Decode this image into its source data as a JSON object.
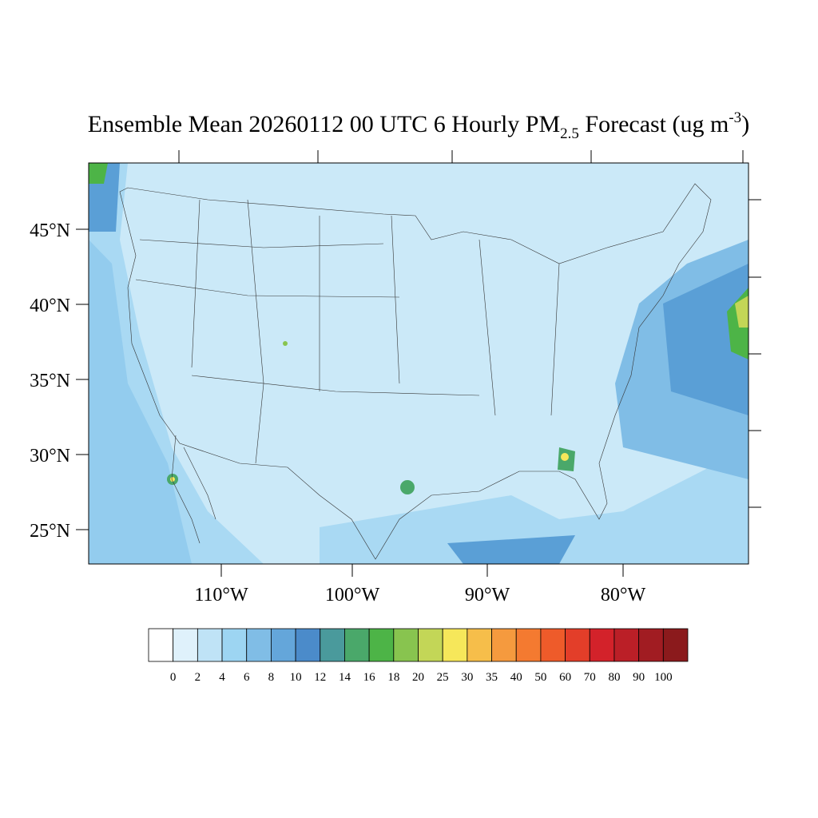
{
  "title": {
    "main": "Ensemble Mean 20260112 00 UTC 6 Hourly PM",
    "subscript": "2.5",
    "middle": " Forecast (ug m",
    "superscript": "-3",
    "end": ")"
  },
  "lat_labels": [
    "45°N",
    "40°N",
    "35°N",
    "30°N",
    "25°N"
  ],
  "lon_labels": [
    "110°W",
    "100°W",
    "90°W",
    "80°W"
  ],
  "colorbar": {
    "labels": [
      "0",
      "2",
      "4",
      "6",
      "8",
      "10",
      "12",
      "14",
      "16",
      "18",
      "20",
      "25",
      "30",
      "35",
      "40",
      "50",
      "60",
      "70",
      "80",
      "90",
      "100"
    ],
    "colors": [
      "#ffffff",
      "#dff1fb",
      "#bfe3f6",
      "#9dd5f2",
      "#80bde6",
      "#64a6da",
      "#4b8bca",
      "#4a9a9c",
      "#4aa86a",
      "#4db447",
      "#88c44f",
      "#c3d657",
      "#f6e75a",
      "#f6be4a",
      "#f59a3e",
      "#f47a30",
      "#ee5b2a",
      "#e33e29",
      "#d3222a",
      "#bb1f27",
      "#a11c22",
      "#8b1a1c"
    ]
  }
}
